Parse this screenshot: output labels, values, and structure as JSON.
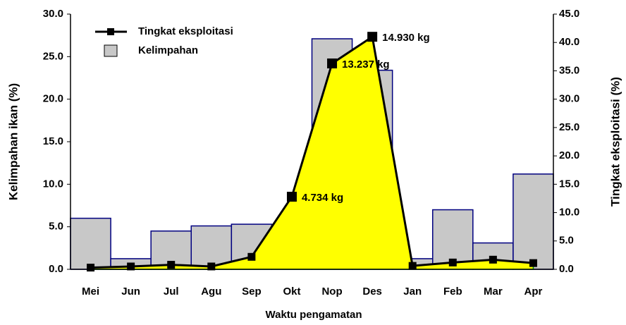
{
  "chart_data": {
    "type": "combo",
    "x_label": "Waktu pengamatan",
    "y_label": "Kelimpahan ikan (%)",
    "y2_label": "Tingkat eksploitasi (%)",
    "categories": [
      "Mei",
      "Jun",
      "Jul",
      "Agu",
      "Sep",
      "Okt",
      "Nop",
      "Des",
      "Jan",
      "Feb",
      "Mar",
      "Apr"
    ],
    "series": [
      {
        "name": "Kelimpahan",
        "type": "bar",
        "color": "#c8c8c8",
        "values": [
          6.0,
          1.25,
          4.5,
          5.1,
          5.3,
          3.7,
          27.1,
          23.4,
          1.25,
          7.0,
          3.1,
          11.2
        ]
      },
      {
        "name": "Tingkat eksploitasi",
        "type": "line",
        "axis": "y2",
        "color": "#000000",
        "fill": "#ffff00",
        "values": [
          0.3,
          0.5,
          0.8,
          0.5,
          2.2,
          12.8,
          36.3,
          41.0,
          0.6,
          1.2,
          1.7,
          1.1
        ]
      }
    ],
    "annotations": [
      {
        "text": "4.734 kg",
        "category": "Okt"
      },
      {
        "text": "13.237 kg",
        "category": "Nop"
      },
      {
        "text": "14.930 kg",
        "category": "Des"
      }
    ],
    "ylim": [
      0,
      30
    ],
    "yticks": [
      {
        "value": 0,
        "label": "0.0"
      },
      {
        "value": 5,
        "label": "5.0"
      },
      {
        "value": 10,
        "label": "10.0"
      },
      {
        "value": 15,
        "label": "15.0"
      },
      {
        "value": 20,
        "label": "20.0"
      },
      {
        "value": 25,
        "label": "25.0"
      },
      {
        "value": 30,
        "label": "30.0"
      }
    ],
    "y2lim": [
      0,
      45
    ],
    "y2ticks": [
      {
        "value": 0,
        "label": "0.0"
      },
      {
        "value": 5,
        "label": "5.0"
      },
      {
        "value": 10,
        "label": "10.0"
      },
      {
        "value": 15,
        "label": "15.0"
      },
      {
        "value": 20,
        "label": "20.0"
      },
      {
        "value": 25,
        "label": "25.0"
      },
      {
        "value": 30,
        "label": "30.0"
      },
      {
        "value": 35,
        "label": "35.0"
      },
      {
        "value": 40,
        "label": "40.0"
      },
      {
        "value": 45,
        "label": "45.0"
      }
    ],
    "legend": "top-left"
  }
}
